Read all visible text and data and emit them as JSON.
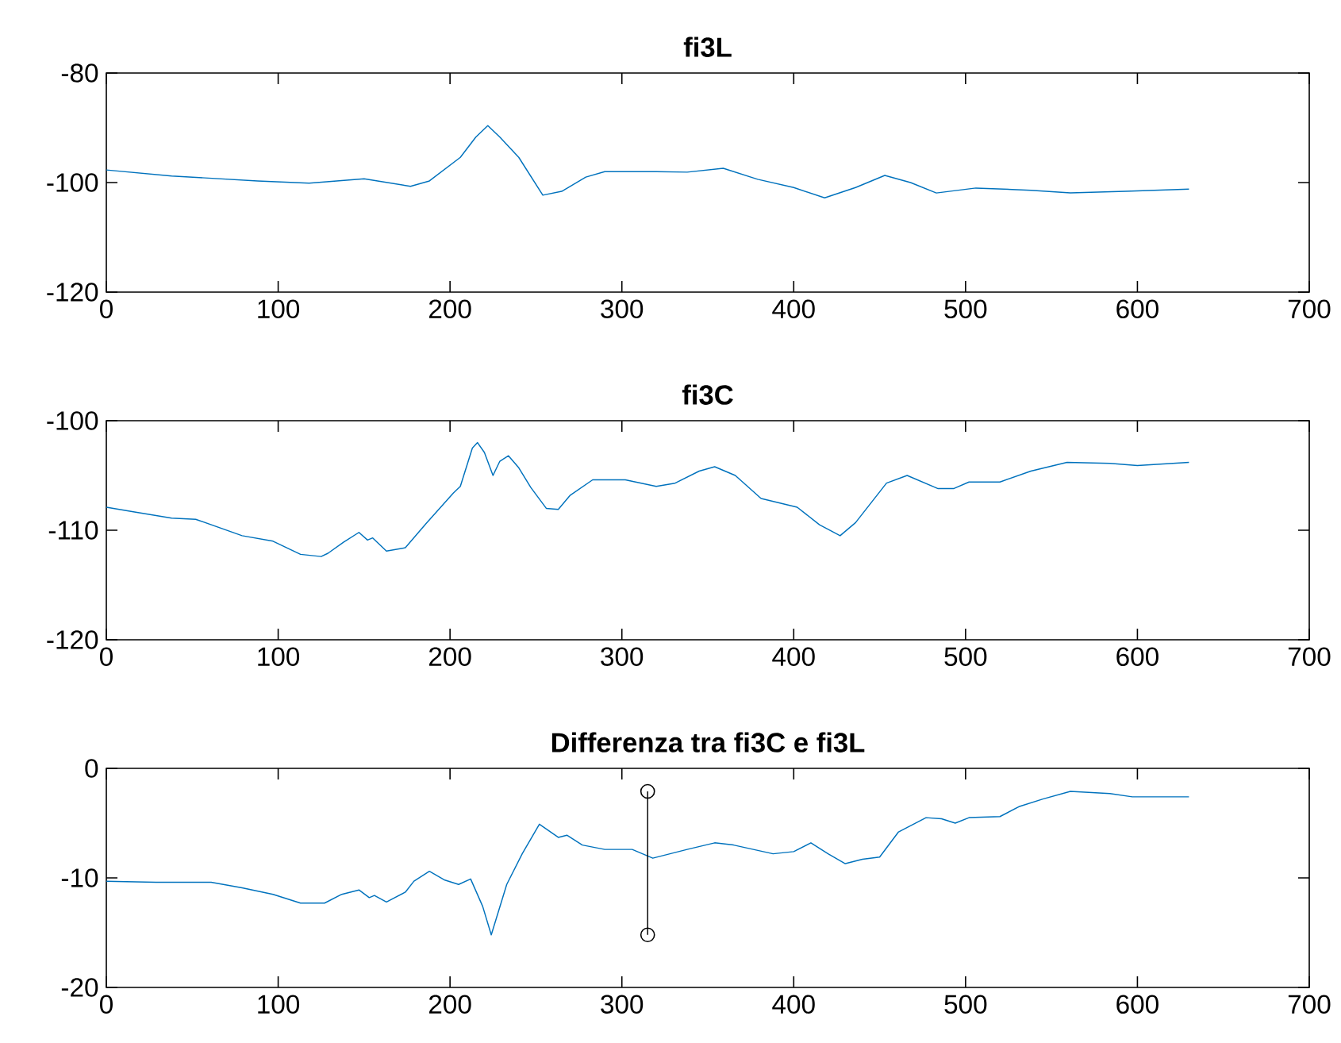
{
  "chart_data": [
    {
      "type": "line",
      "title": "fi3L",
      "xlim": [
        0,
        700
      ],
      "xticks": [
        0,
        100,
        200,
        300,
        400,
        500,
        600,
        700
      ],
      "ylim": [
        -120,
        -80
      ],
      "yticks": [
        -120,
        -100,
        -80
      ],
      "series": [
        {
          "color": "#0072bd",
          "x": [
            0,
            38,
            88,
            118,
            150,
            177,
            188,
            206,
            215,
            222,
            229,
            240,
            254,
            265,
            279,
            290,
            320,
            338,
            359,
            379,
            400,
            418,
            436,
            453,
            468,
            483,
            506,
            538,
            561,
            593,
            630
          ],
          "values": [
            -97.7,
            -98.8,
            -99.7,
            -100.1,
            -99.3,
            -100.7,
            -99.7,
            -95.4,
            -91.7,
            -89.6,
            -91.7,
            -95.4,
            -102.3,
            -101.6,
            -99,
            -98,
            -98,
            -98.1,
            -97.4,
            -99.4,
            -100.9,
            -102.8,
            -100.9,
            -98.7,
            -100,
            -101.9,
            -101,
            -101.4,
            -101.9,
            -101.6,
            -101.2
          ]
        }
      ]
    },
    {
      "type": "line",
      "title": "fi3C",
      "xlim": [
        0,
        700
      ],
      "xticks": [
        0,
        100,
        200,
        300,
        400,
        500,
        600,
        700
      ],
      "ylim": [
        -120,
        -100
      ],
      "yticks": [
        -120,
        -110,
        -100
      ],
      "series": [
        {
          "color": "#0072bd",
          "x": [
            0,
            15,
            38,
            52,
            79,
            97,
            113,
            125,
            129,
            138,
            147,
            152,
            155,
            163,
            174,
            186,
            202,
            206,
            213,
            216,
            220,
            225,
            229,
            234,
            240,
            247,
            256,
            263,
            270,
            283,
            302,
            311,
            320,
            331,
            345,
            354,
            366,
            381,
            402,
            415,
            427,
            436,
            454,
            466,
            484,
            493,
            502,
            520,
            538,
            559,
            584,
            600,
            630
          ],
          "values": [
            -107.9,
            -108.3,
            -108.9,
            -109,
            -110.5,
            -111,
            -112.2,
            -112.4,
            -112.1,
            -111.1,
            -110.2,
            -110.9,
            -110.7,
            -111.9,
            -111.6,
            -109.4,
            -106.6,
            -106,
            -102.5,
            -102,
            -102.9,
            -105,
            -103.7,
            -103.2,
            -104.3,
            -106.1,
            -108,
            -108.1,
            -106.8,
            -105.4,
            -105.4,
            -105.7,
            -106,
            -105.7,
            -104.6,
            -104.2,
            -105,
            -107.1,
            -107.9,
            -109.5,
            -110.5,
            -109.3,
            -105.7,
            -105,
            -106.2,
            -106.2,
            -105.6,
            -105.6,
            -104.6,
            -103.8,
            -103.9,
            -104.1,
            -103.8
          ]
        }
      ]
    },
    {
      "type": "line",
      "title": "Differenza tra fi3C e fi3L",
      "xlim": [
        0,
        700
      ],
      "xticks": [
        0,
        100,
        200,
        300,
        400,
        500,
        600,
        700
      ],
      "ylim": [
        -20,
        0
      ],
      "yticks": [
        -20,
        -10,
        0
      ],
      "series": [
        {
          "color": "#0072bd",
          "x": [
            0,
            29,
            61,
            79,
            97,
            113,
            127,
            137,
            147,
            153,
            156,
            163,
            174,
            179,
            188,
            197,
            205,
            212,
            219,
            224,
            233,
            242,
            252,
            263,
            268,
            277,
            290,
            306,
            318,
            338,
            354,
            365,
            388,
            400,
            410,
            420,
            430,
            440,
            450,
            461,
            477,
            486,
            494,
            502,
            520,
            531,
            545,
            561,
            584,
            597,
            630
          ],
          "values": [
            -10.3,
            -10.4,
            -10.4,
            -10.9,
            -11.5,
            -12.3,
            -12.3,
            -11.5,
            -11.1,
            -11.8,
            -11.6,
            -12.2,
            -11.3,
            -10.3,
            -9.4,
            -10.2,
            -10.6,
            -10.1,
            -12.6,
            -15.2,
            -10.6,
            -7.8,
            -5.1,
            -6.3,
            -6.1,
            -7,
            -7.4,
            -7.4,
            -8.2,
            -7.4,
            -6.8,
            -7,
            -7.8,
            -7.6,
            -6.8,
            -7.8,
            -8.7,
            -8.3,
            -8.1,
            -5.8,
            -4.5,
            -4.6,
            -5,
            -4.5,
            -4.4,
            -3.5,
            -2.8,
            -2.1,
            -2.3,
            -2.6,
            -2.6
          ]
        },
        {
          "color": "#000000",
          "marker": "circle",
          "x": [
            315,
            315
          ],
          "values": [
            -2.1,
            -15.2
          ]
        }
      ]
    }
  ]
}
